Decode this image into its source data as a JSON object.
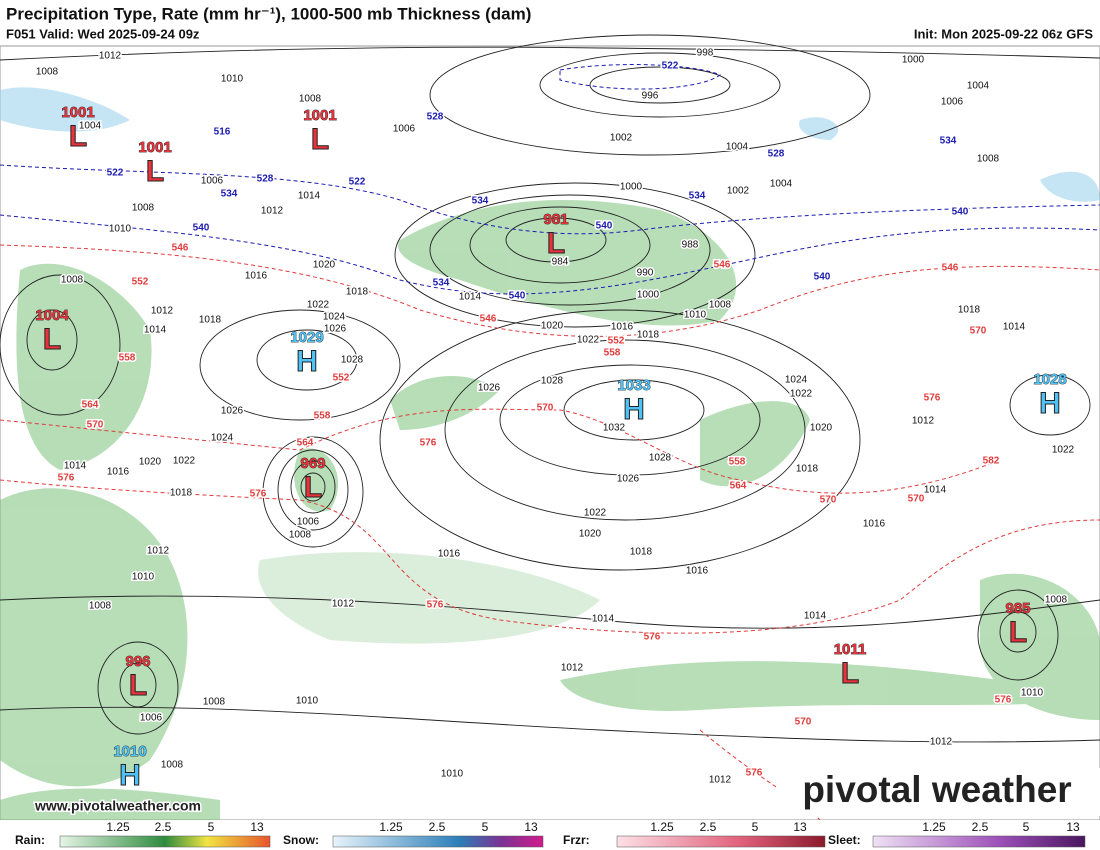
{
  "header": {
    "title": "Precipitation Type, Rate (mm hr⁻¹), 1000-500 mb Thickness (dam)",
    "valid": "F051 Valid: Wed 2025-09-24 09z",
    "init": "Init: Mon 2025-09-22 06z GFS"
  },
  "centers": [
    {
      "letter": "L",
      "pressure": "1001",
      "color": "#e8323c"
    },
    {
      "letter": "L",
      "pressure": "1001",
      "color": "#e8323c"
    },
    {
      "letter": "L",
      "pressure": "1001",
      "color": "#e8323c"
    },
    {
      "letter": "L",
      "pressure": "981",
      "color": "#e8323c"
    },
    {
      "letter": "L",
      "pressure": "1004",
      "color": "#e8323c"
    },
    {
      "letter": "H",
      "pressure": "1029",
      "color": "#4fc3f7"
    },
    {
      "letter": "H",
      "pressure": "1033",
      "color": "#4fc3f7"
    },
    {
      "letter": "H",
      "pressure": "1028",
      "color": "#4fc3f7"
    },
    {
      "letter": "L",
      "pressure": "969",
      "color": "#e8323c"
    },
    {
      "letter": "L",
      "pressure": "985",
      "color": "#e8323c"
    },
    {
      "letter": "L",
      "pressure": "996",
      "color": "#e8323c"
    },
    {
      "letter": "L",
      "pressure": "1011",
      "color": "#e8323c"
    },
    {
      "letter": "H",
      "pressure": "1010",
      "color": "#4fc3f7"
    }
  ],
  "isobar_labels": [
    "1012",
    "998",
    "996",
    "1000",
    "1004",
    "1006",
    "1008",
    "1010",
    "1008",
    "1006",
    "1002",
    "1004",
    "1004",
    "1008",
    "1000",
    "1002",
    "1012",
    "1014",
    "988",
    "984",
    "990",
    "1000",
    "1008",
    "1010",
    "1016",
    "1020",
    "1022",
    "1018",
    "1014",
    "1018",
    "1020",
    "1022",
    "1024",
    "1026",
    "1028",
    "1026",
    "1024",
    "1028",
    "1026",
    "1032",
    "1028",
    "1026",
    "1022",
    "1020",
    "1018",
    "1016",
    "1016",
    "1012",
    "1014",
    "1012",
    "1010",
    "1012",
    "1008",
    "1010",
    "1014",
    "1016",
    "1018",
    "1020",
    "1022",
    "1024",
    "1014",
    "1012",
    "1014",
    "1018",
    "1022",
    "1010",
    "1012",
    "1008",
    "1010",
    "1012",
    "1018",
    "1016",
    "1014",
    "1020",
    "1022",
    "1008",
    "1006",
    "1008",
    "1006",
    "1008",
    "1012",
    "1014",
    "1008",
    "1018",
    "1016",
    "1010",
    "1008",
    "1006",
    "1004"
  ],
  "thickness_labels": [
    {
      "text": "516",
      "color": "#1b1bb0"
    },
    {
      "text": "522",
      "color": "#1b1bb0"
    },
    {
      "text": "534",
      "color": "#1b1bb0"
    },
    {
      "text": "528",
      "color": "#1b1bb0"
    },
    {
      "text": "540",
      "color": "#1b1bb0"
    },
    {
      "text": "528",
      "color": "#1b1bb0"
    },
    {
      "text": "522",
      "color": "#1b1bb0"
    },
    {
      "text": "534",
      "color": "#1b1bb0"
    },
    {
      "text": "540",
      "color": "#1b1bb0"
    },
    {
      "text": "534",
      "color": "#1b1bb0"
    },
    {
      "text": "540",
      "color": "#1b1bb0"
    },
    {
      "text": "522",
      "color": "#1b1bb0"
    },
    {
      "text": "534",
      "color": "#1b1bb0"
    },
    {
      "text": "528",
      "color": "#1b1bb0"
    },
    {
      "text": "534",
      "color": "#1b1bb0"
    },
    {
      "text": "540",
      "color": "#1b1bb0"
    },
    {
      "text": "540",
      "color": "#1b1bb0"
    },
    {
      "text": "546",
      "color": "#e03c3c"
    },
    {
      "text": "546",
      "color": "#e03c3c"
    },
    {
      "text": "552",
      "color": "#e03c3c"
    },
    {
      "text": "558",
      "color": "#e03c3c"
    },
    {
      "text": "546",
      "color": "#e03c3c"
    },
    {
      "text": "552",
      "color": "#e03c3c"
    },
    {
      "text": "558",
      "color": "#e03c3c"
    },
    {
      "text": "552",
      "color": "#e03c3c"
    },
    {
      "text": "558",
      "color": "#e03c3c"
    },
    {
      "text": "564",
      "color": "#e03c3c"
    },
    {
      "text": "576",
      "color": "#e03c3c"
    },
    {
      "text": "570",
      "color": "#e03c3c"
    },
    {
      "text": "576",
      "color": "#e03c3c"
    },
    {
      "text": "564",
      "color": "#e03c3c"
    },
    {
      "text": "570",
      "color": "#e03c3c"
    },
    {
      "text": "576",
      "color": "#e03c3c"
    },
    {
      "text": "576",
      "color": "#e03c3c"
    },
    {
      "text": "576",
      "color": "#e03c3c"
    },
    {
      "text": "570",
      "color": "#e03c3c"
    },
    {
      "text": "576",
      "color": "#e03c3c"
    },
    {
      "text": "564",
      "color": "#e03c3c"
    },
    {
      "text": "558",
      "color": "#e03c3c"
    },
    {
      "text": "570",
      "color": "#e03c3c"
    },
    {
      "text": "570",
      "color": "#e03c3c"
    },
    {
      "text": "576",
      "color": "#e03c3c"
    },
    {
      "text": "546",
      "color": "#e03c3c"
    },
    {
      "text": "570",
      "color": "#e03c3c"
    },
    {
      "text": "582",
      "color": "#e03c3c"
    },
    {
      "text": "576",
      "color": "#e03c3c"
    }
  ],
  "watermark": {
    "brand": "pivotal weather",
    "url": "www.pivotalweather.com"
  },
  "legend": [
    {
      "label": "Rain:",
      "ticks": [
        "1.25",
        "2.5",
        "5",
        "13"
      ]
    },
    {
      "label": "Snow:",
      "ticks": [
        "1.25",
        "2.5",
        "5",
        "13"
      ]
    },
    {
      "label": "Frzr:",
      "ticks": [
        "1.25",
        "2.5",
        "5",
        "13"
      ]
    },
    {
      "label": "Sleet:",
      "ticks": [
        "1.25",
        "2.5",
        "5",
        "13"
      ]
    }
  ]
}
